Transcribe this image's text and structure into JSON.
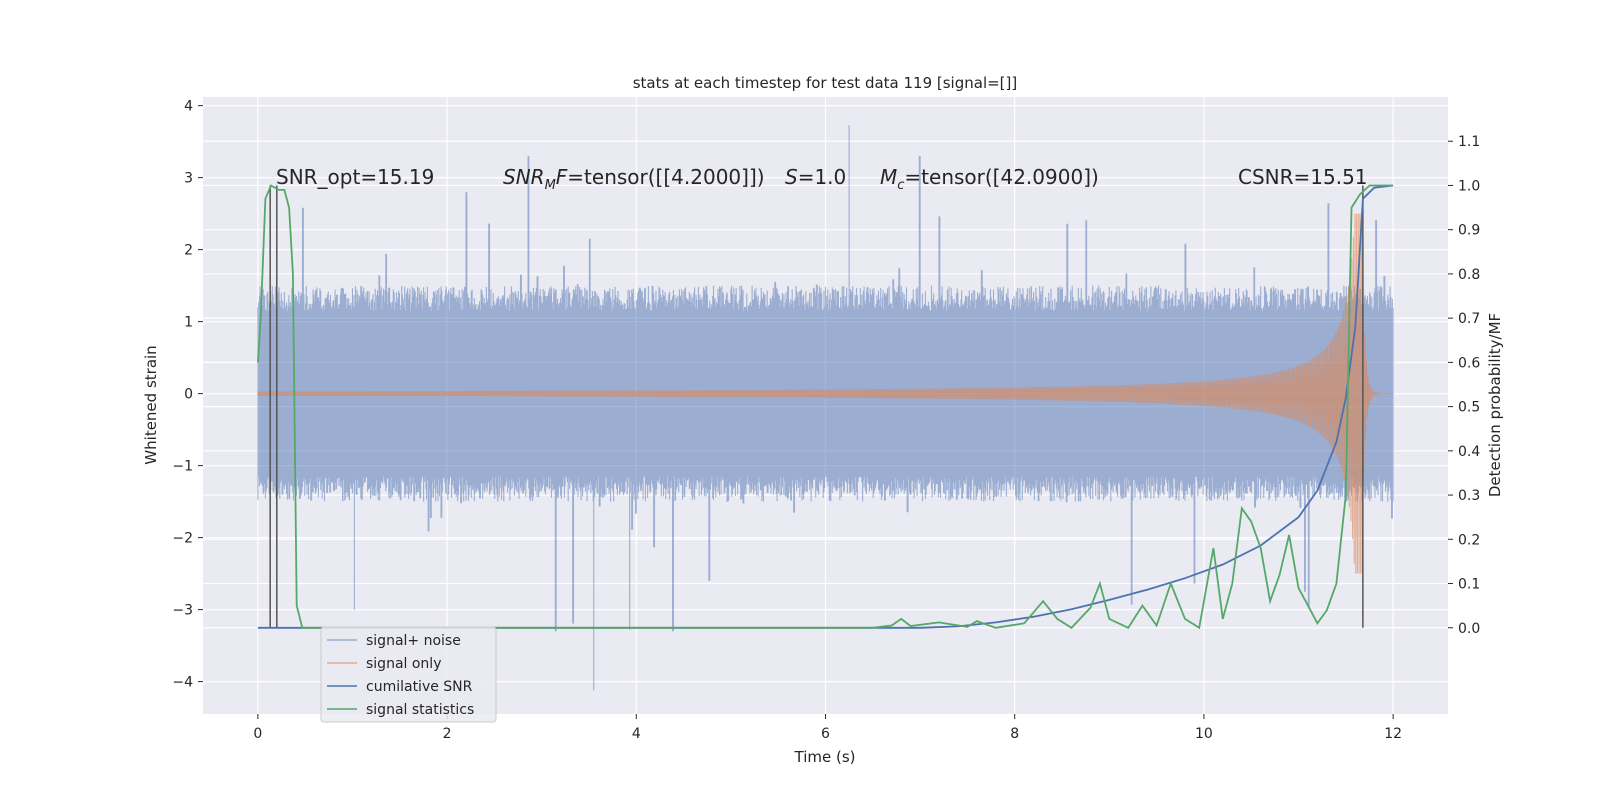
{
  "chart_data": {
    "type": "line",
    "title": "stats at each timestep for test data 119 [signal=[]]",
    "xlabel": "Time (s)",
    "ylabel": "Whitened strain",
    "y2label": "Detection probability/MF",
    "xlim": [
      -0.58,
      12.58
    ],
    "ylim": [
      -4.45,
      4.12
    ],
    "y2lim": [
      -0.195,
      1.2
    ],
    "x_ticks": [
      0,
      2,
      4,
      6,
      8,
      10,
      12
    ],
    "y_ticks": [
      -4,
      -3,
      -2,
      -1,
      0,
      1,
      2,
      3,
      4
    ],
    "y2_ticks": [
      "0.0",
      "0.1",
      "0.2",
      "0.3",
      "0.4",
      "0.5",
      "0.6",
      "0.7",
      "0.8",
      "0.9",
      "1.0",
      "1.1"
    ],
    "grid": true,
    "legend_position": "lower-left",
    "colors": {
      "plot_bg": "#EAEAF2",
      "grid": "#FFFFFF",
      "noise": "#4C72B0",
      "signal": "#DD8452",
      "csnr": "#4C72B0",
      "stats": "#55A868",
      "vline": "#555555"
    },
    "annotations": [
      {
        "text": "SNR_opt=15.19",
        "x": 0.22,
        "y": 3.0
      },
      {
        "text": "SNR_M F=tensor([[4.2000]])",
        "x": 2.62,
        "y": 3.0
      },
      {
        "text": "S=1.0",
        "x": 5.6,
        "y": 3.0
      },
      {
        "text": "M_c=tensor([42.0900])",
        "x": 6.62,
        "y": 3.0
      },
      {
        "text": "CSNR=15.51",
        "x": 10.42,
        "y": 3.0
      }
    ],
    "vertical_lines": [
      0.13,
      0.2,
      11.68
    ],
    "series": [
      {
        "name": "signal+ noise",
        "kind": "noise",
        "t_range": [
          0,
          12
        ],
        "envelope": 1.45,
        "peak_max": 3.73,
        "peak_min": -4.12
      },
      {
        "name": "signal only",
        "kind": "chirp",
        "t_range": [
          0,
          12
        ],
        "merger_time": 11.68,
        "peak_amplitude": 1.0
      },
      {
        "name": "cumilative SNR",
        "kind": "line",
        "axis": "right",
        "points": [
          [
            0,
            0
          ],
          [
            7.0,
            0
          ],
          [
            7.4,
            0.003
          ],
          [
            7.8,
            0.012
          ],
          [
            8.2,
            0.025
          ],
          [
            8.6,
            0.042
          ],
          [
            9.0,
            0.063
          ],
          [
            9.4,
            0.086
          ],
          [
            9.8,
            0.112
          ],
          [
            10.2,
            0.143
          ],
          [
            10.6,
            0.186
          ],
          [
            11.0,
            0.25
          ],
          [
            11.2,
            0.31
          ],
          [
            11.4,
            0.42
          ],
          [
            11.5,
            0.52
          ],
          [
            11.6,
            0.68
          ],
          [
            11.68,
            0.97
          ],
          [
            11.8,
            0.995
          ],
          [
            12,
            1.0
          ]
        ]
      },
      {
        "name": "signal statistics",
        "kind": "line",
        "axis": "right",
        "points": [
          [
            0,
            0.6
          ],
          [
            0.03,
            0.7
          ],
          [
            0.08,
            0.97
          ],
          [
            0.14,
            1.0
          ],
          [
            0.22,
            0.99
          ],
          [
            0.28,
            0.99
          ],
          [
            0.33,
            0.95
          ],
          [
            0.37,
            0.8
          ],
          [
            0.41,
            0.05
          ],
          [
            0.47,
            0.0
          ],
          [
            6.5,
            0.0
          ],
          [
            6.7,
            0.005
          ],
          [
            6.8,
            0.02
          ],
          [
            6.9,
            0.004
          ],
          [
            7.2,
            0.012
          ],
          [
            7.5,
            0.002
          ],
          [
            7.6,
            0.015
          ],
          [
            7.8,
            0.0
          ],
          [
            8.1,
            0.01
          ],
          [
            8.3,
            0.06
          ],
          [
            8.45,
            0.02
          ],
          [
            8.6,
            0.0
          ],
          [
            8.8,
            0.045
          ],
          [
            8.9,
            0.1
          ],
          [
            9.0,
            0.02
          ],
          [
            9.2,
            0.0
          ],
          [
            9.35,
            0.05
          ],
          [
            9.5,
            0.005
          ],
          [
            9.65,
            0.1
          ],
          [
            9.8,
            0.02
          ],
          [
            9.95,
            0.0
          ],
          [
            10.1,
            0.18
          ],
          [
            10.2,
            0.02
          ],
          [
            10.3,
            0.1
          ],
          [
            10.4,
            0.27
          ],
          [
            10.5,
            0.24
          ],
          [
            10.6,
            0.18
          ],
          [
            10.7,
            0.06
          ],
          [
            10.8,
            0.12
          ],
          [
            10.9,
            0.21
          ],
          [
            11.0,
            0.09
          ],
          [
            11.1,
            0.05
          ],
          [
            11.2,
            0.01
          ],
          [
            11.3,
            0.04
          ],
          [
            11.4,
            0.1
          ],
          [
            11.5,
            0.3
          ],
          [
            11.56,
            0.95
          ],
          [
            11.65,
            0.98
          ],
          [
            11.75,
            1.0
          ],
          [
            12,
            1.0
          ]
        ]
      }
    ]
  }
}
